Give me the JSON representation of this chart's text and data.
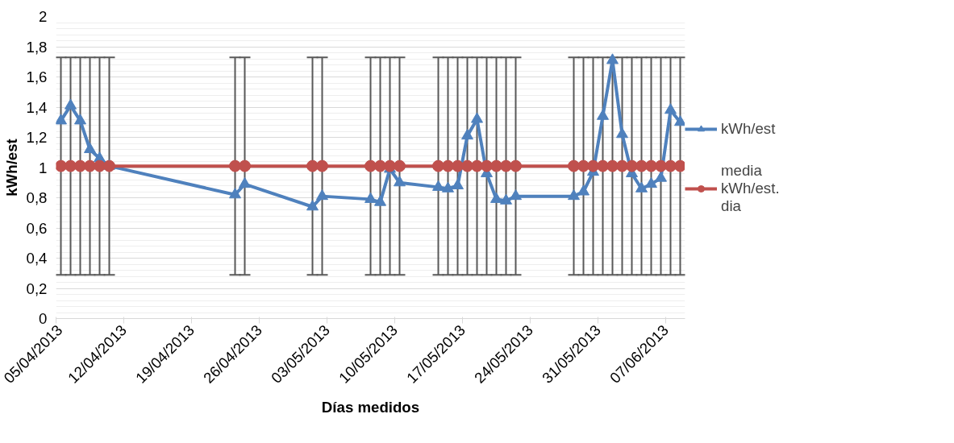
{
  "chart_data": {
    "type": "line",
    "xlabel": "Días medidos",
    "ylabel": "kWh/est",
    "x": [
      "2013-04-05T12:00",
      "2013-04-06T12:00",
      "2013-04-07T12:00",
      "2013-04-08T12:00",
      "2013-04-09T12:00",
      "2013-04-10T12:00",
      "2013-04-23T12:00",
      "2013-04-24T12:00",
      "2013-05-01T12:00",
      "2013-05-02T12:00",
      "2013-05-07T12:00",
      "2013-05-08T12:00",
      "2013-05-09T12:00",
      "2013-05-10T12:00",
      "2013-05-14T12:00",
      "2013-05-15T12:00",
      "2013-05-16T12:00",
      "2013-05-17T12:00",
      "2013-05-18T12:00",
      "2013-05-19T12:00",
      "2013-05-20T12:00",
      "2013-05-21T12:00",
      "2013-05-22T12:00",
      "2013-05-28T12:00",
      "2013-05-29T12:00",
      "2013-05-30T12:00",
      "2013-05-31T12:00",
      "2013-06-01T12:00",
      "2013-06-02T12:00",
      "2013-06-03T12:00",
      "2013-06-04T12:00",
      "2013-06-05T12:00",
      "2013-06-06T12:00",
      "2013-06-07T12:00",
      "2013-06-08T12:00"
    ],
    "series": [
      {
        "name": "kWh/est",
        "color": "#4f81bd",
        "marker": "triangle",
        "values": [
          1.31,
          1.41,
          1.31,
          1.12,
          1.06,
          1.01,
          0.82,
          0.89,
          0.74,
          0.81,
          0.79,
          0.77,
          0.99,
          0.9,
          0.87,
          0.86,
          0.88,
          1.21,
          1.32,
          0.96,
          0.79,
          0.78,
          0.81,
          0.81,
          0.84,
          0.97,
          1.34,
          1.71,
          1.22,
          0.96,
          0.86,
          0.89,
          0.93,
          1.38,
          1.3
        ]
      },
      {
        "name": "media kWh/est. dia",
        "color": "#c0504d",
        "marker": "circle",
        "values": [
          1.01,
          1.01,
          1.01,
          1.01,
          1.01,
          1.01,
          1.01,
          1.01,
          1.01,
          1.01,
          1.01,
          1.01,
          1.01,
          1.01,
          1.01,
          1.01,
          1.01,
          1.01,
          1.01,
          1.01,
          1.01,
          1.01,
          1.01,
          1.01,
          1.01,
          1.01,
          1.01,
          1.01,
          1.01,
          1.01,
          1.01,
          1.01,
          1.01,
          1.01,
          1.01
        ],
        "errors": [
          0.72,
          0.72,
          0.72,
          0.72,
          0.72,
          0.72,
          0.72,
          0.72,
          0.72,
          0.72,
          0.72,
          0.72,
          0.72,
          0.72,
          0.72,
          0.72,
          0.72,
          0.72,
          0.72,
          0.72,
          0.72,
          0.72,
          0.72,
          0.72,
          0.72,
          0.72,
          0.72,
          0.72,
          0.72,
          0.72,
          0.72,
          0.72,
          0.72,
          0.72,
          0.72
        ]
      }
    ],
    "xlim": [
      "2013-04-05",
      "2013-06-09"
    ],
    "xticks": [
      {
        "value": "2013-04-05",
        "label": "05/04/2013"
      },
      {
        "value": "2013-04-12",
        "label": "12/04/2013"
      },
      {
        "value": "2013-04-19",
        "label": "19/04/2013"
      },
      {
        "value": "2013-04-26",
        "label": "26/04/2013"
      },
      {
        "value": "2013-05-03",
        "label": "03/05/2013"
      },
      {
        "value": "2013-05-10",
        "label": "10/05/2013"
      },
      {
        "value": "2013-05-17",
        "label": "17/05/2013"
      },
      {
        "value": "2013-05-24",
        "label": "24/05/2013"
      },
      {
        "value": "2013-05-31",
        "label": "31/05/2013"
      },
      {
        "value": "2013-06-07",
        "label": "07/06/2013"
      }
    ],
    "ylim": [
      0,
      2
    ],
    "yticks": [
      0,
      {
        "value": 0.2,
        "label": "0,2"
      },
      {
        "value": 0.4,
        "label": "0,4"
      },
      {
        "value": 0.6,
        "label": "0,6"
      },
      {
        "value": 0.8,
        "label": "0,8"
      },
      1,
      {
        "value": 1.2,
        "label": "1,2"
      },
      {
        "value": 1.4,
        "label": "1,4"
      },
      {
        "value": 1.6,
        "label": "1,6"
      },
      {
        "value": 1.8,
        "label": "1,8"
      },
      2
    ],
    "grid": "y",
    "legend": "right",
    "line_style": "solid"
  }
}
